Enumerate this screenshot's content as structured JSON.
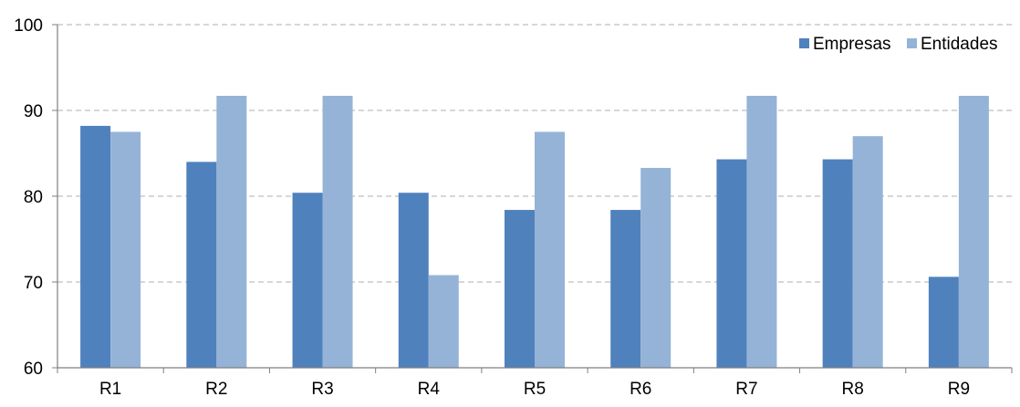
{
  "chart_data": {
    "type": "bar",
    "categories": [
      "R1",
      "R2",
      "R3",
      "R4",
      "R5",
      "R6",
      "R7",
      "R8",
      "R9"
    ],
    "series": [
      {
        "name": "Empresas",
        "color": "#4F81BD",
        "values": [
          88.2,
          84.0,
          80.4,
          80.4,
          78.4,
          78.4,
          84.3,
          84.3,
          70.6
        ]
      },
      {
        "name": "Entidades",
        "color": "#95B3D7",
        "values": [
          87.5,
          91.7,
          91.7,
          70.8,
          87.5,
          83.3,
          91.7,
          87.0,
          91.7
        ]
      }
    ],
    "ylim": [
      60,
      100
    ],
    "yticks": [
      60,
      70,
      80,
      90,
      100
    ],
    "grid": true,
    "legend_position": "top-right",
    "title": "",
    "xlabel": "",
    "ylabel": ""
  }
}
